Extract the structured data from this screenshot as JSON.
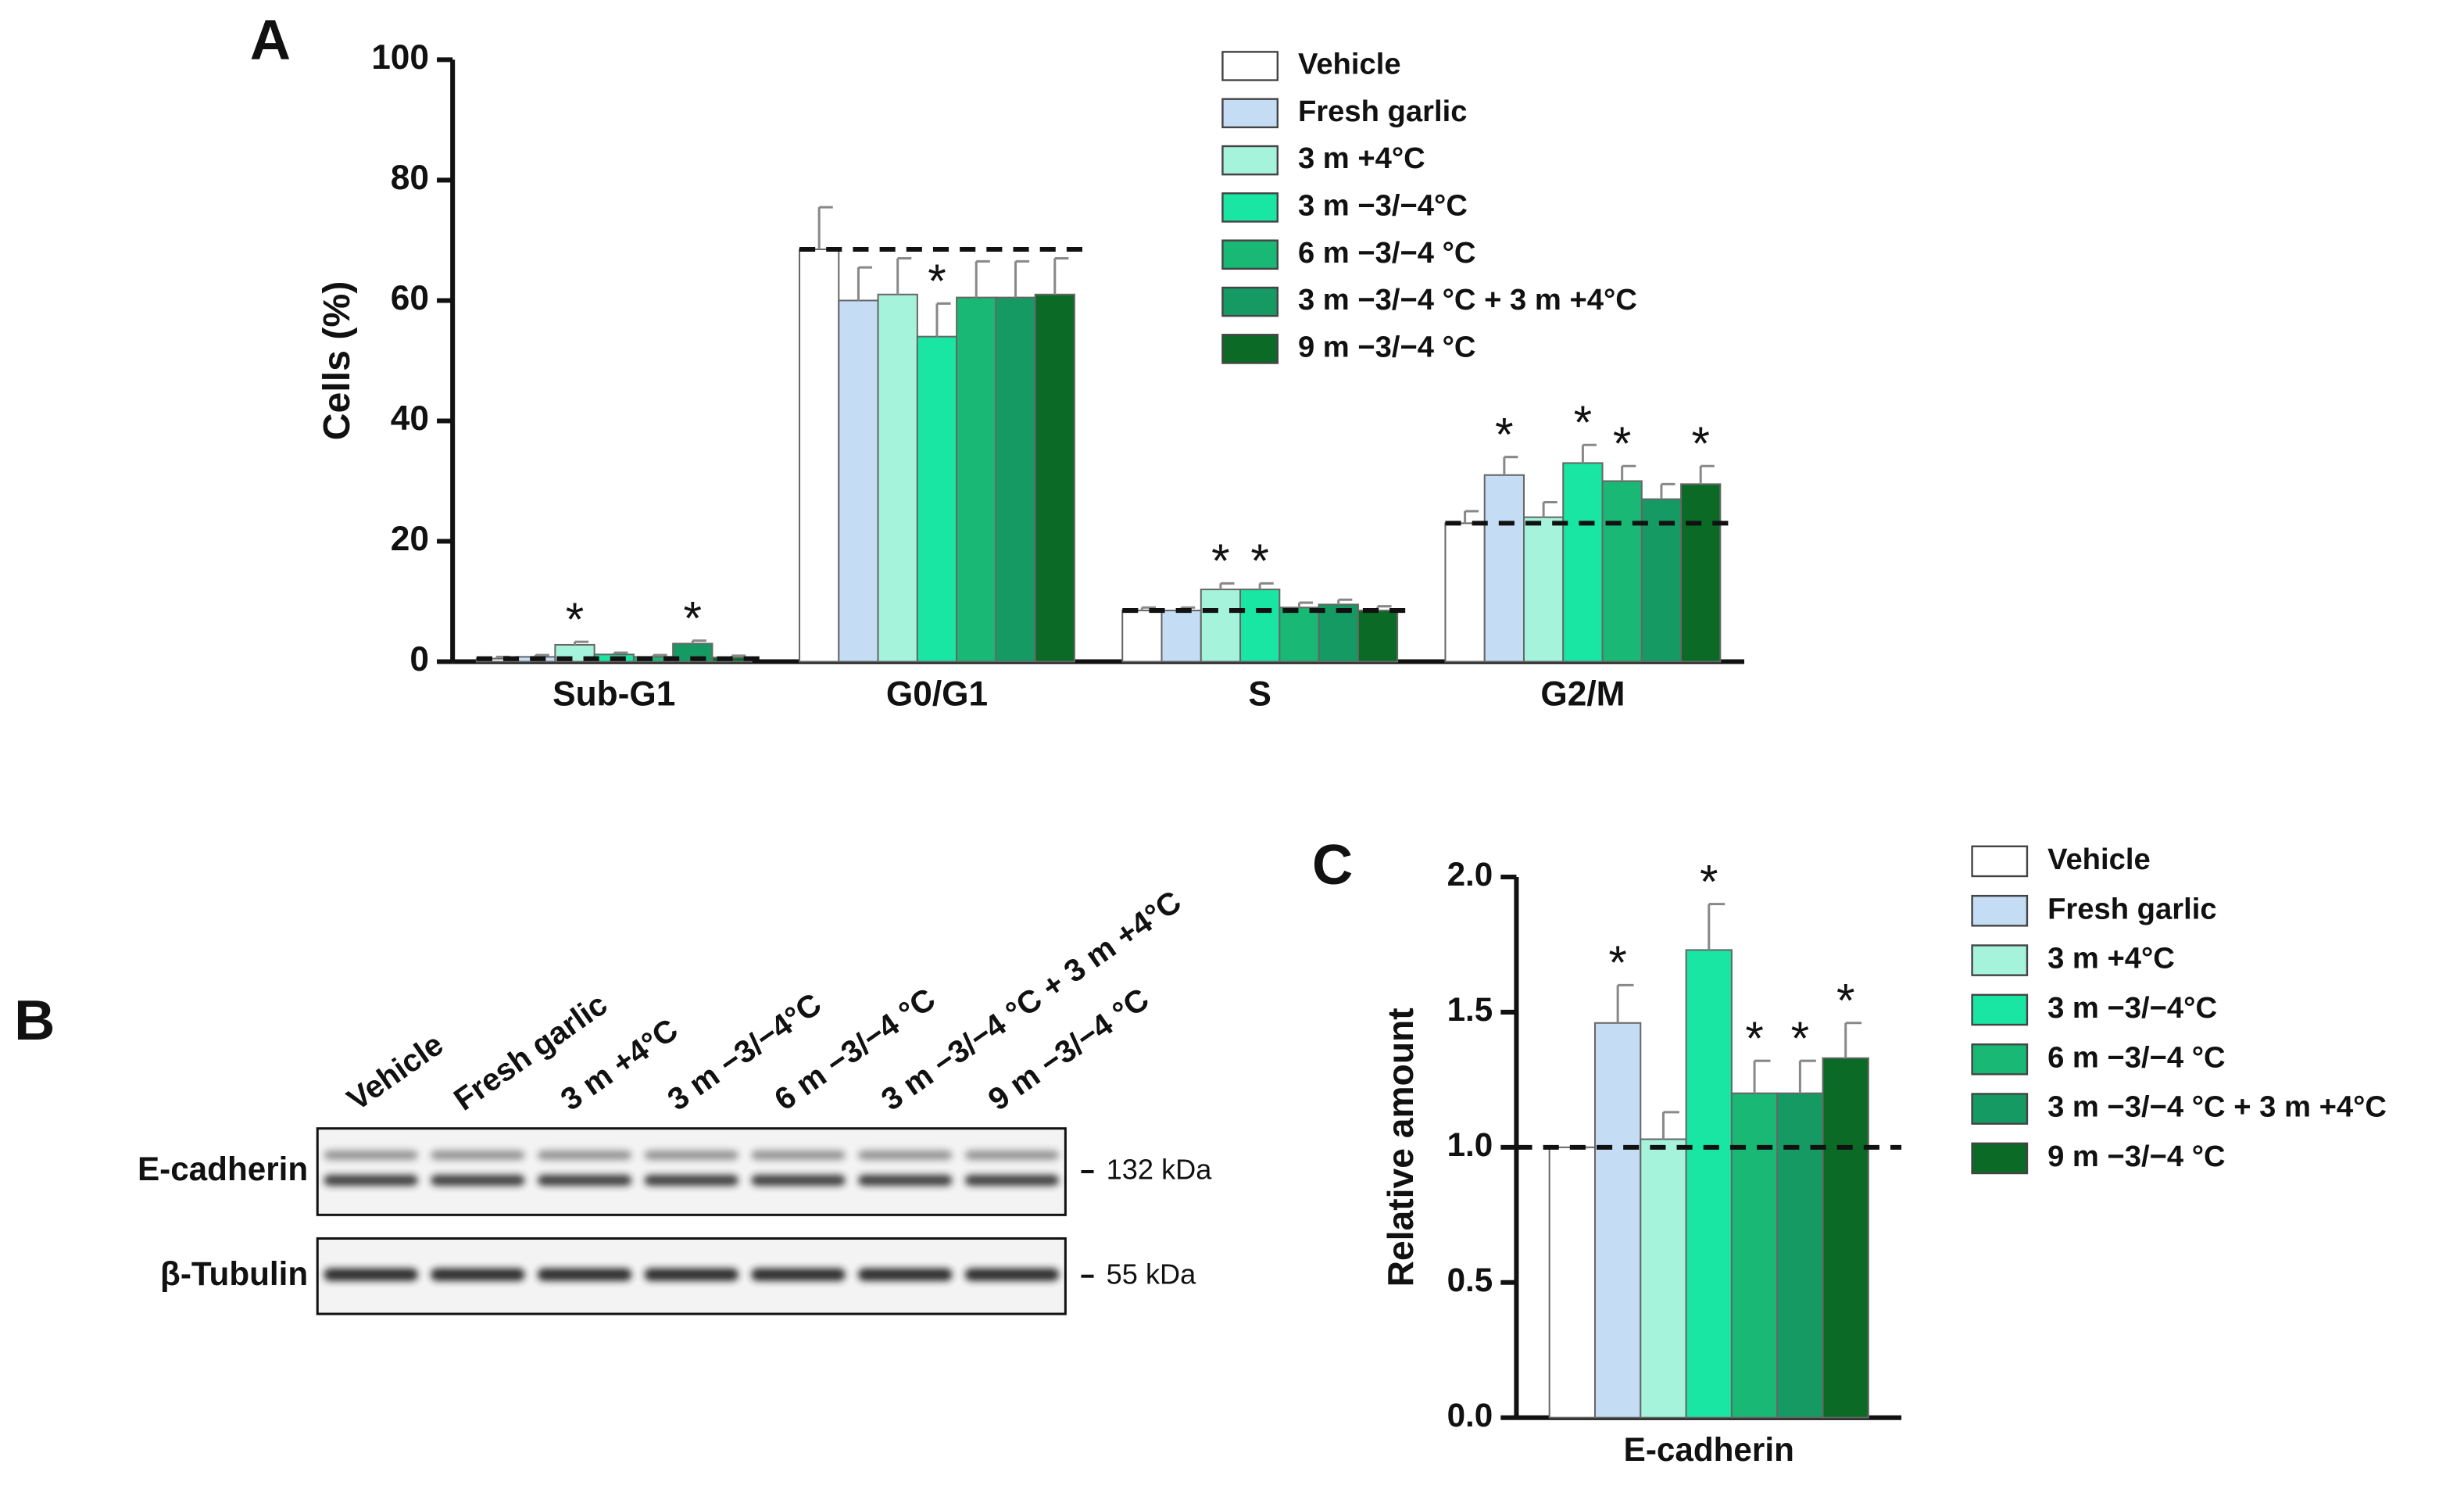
{
  "chart_data": [
    {
      "type": "bar",
      "panel": "A",
      "ylabel": "Cells (%)",
      "categories": [
        "Sub-G1",
        "G0/G1",
        "S",
        "G2/M"
      ],
      "ylim": [
        0,
        100
      ],
      "yticks": [
        0,
        20,
        40,
        60,
        80,
        100
      ],
      "significance_marker": "*",
      "reference_line": "vehicle",
      "series": [
        {
          "name": "Vehicle",
          "color": "#ffffff",
          "values": [
            0.5,
            68.5,
            8.5,
            23
          ],
          "errors": [
            0.3,
            7,
            0.5,
            2
          ],
          "significant": [
            false,
            false,
            false,
            false
          ]
        },
        {
          "name": "Fresh garlic",
          "color": "#c5dcf5",
          "values": [
            0.8,
            60,
            8.5,
            31
          ],
          "errors": [
            0.3,
            5.5,
            0.5,
            3
          ],
          "significant": [
            false,
            false,
            false,
            true
          ]
        },
        {
          "name": "3 m +4°C",
          "color": "#a6f3dc",
          "values": [
            2.8,
            61,
            12,
            24
          ],
          "errors": [
            0.5,
            6,
            1,
            2.5
          ],
          "significant": [
            true,
            false,
            true,
            false
          ]
        },
        {
          "name": "3 m −3/−4°C",
          "color": "#19e6a2",
          "values": [
            1.2,
            54,
            12,
            33
          ],
          "errors": [
            0.3,
            5.5,
            1,
            3
          ],
          "significant": [
            false,
            true,
            true,
            true
          ]
        },
        {
          "name": "6 m −3/−4 °C",
          "color": "#19b874",
          "values": [
            0.8,
            60.5,
            9,
            30
          ],
          "errors": [
            0.3,
            6,
            0.8,
            2.5
          ],
          "significant": [
            false,
            false,
            false,
            true
          ]
        },
        {
          "name": "3 m −3/−4 °C + 3 m +4°C",
          "color": "#149a62",
          "values": [
            3.0,
            60.5,
            9.5,
            27
          ],
          "errors": [
            0.5,
            6,
            0.8,
            2.5
          ],
          "significant": [
            true,
            false,
            false,
            false
          ]
        },
        {
          "name": "9 m −3/−4 °C",
          "color": "#0b6a26",
          "values": [
            0.7,
            61,
            8.5,
            29.5
          ],
          "errors": [
            0.3,
            6,
            0.7,
            3
          ],
          "significant": [
            false,
            false,
            false,
            true
          ]
        }
      ]
    },
    {
      "type": "bar",
      "panel": "C",
      "ylabel": "Relative amount",
      "categories": [
        "E-cadherin"
      ],
      "ylim": [
        0,
        2
      ],
      "yticks": [
        {
          "value": 0,
          "label": "0.0"
        },
        {
          "value": 0.5,
          "label": "0.5"
        },
        {
          "value": 1,
          "label": "1.0"
        },
        {
          "value": 1.5,
          "label": "1.5"
        },
        {
          "value": 2,
          "label": "2.0"
        }
      ],
      "significance_marker": "*",
      "reference_line": "vehicle",
      "series": [
        {
          "name": "Vehicle",
          "color": "#ffffff",
          "values": [
            1.0
          ],
          "errors": [
            0
          ],
          "significant": [
            false
          ]
        },
        {
          "name": "Fresh garlic",
          "color": "#c5dcf5",
          "values": [
            1.46
          ],
          "errors": [
            0.14
          ],
          "significant": [
            true
          ]
        },
        {
          "name": "3 m +4°C",
          "color": "#a6f3dc",
          "values": [
            1.03
          ],
          "errors": [
            0.1
          ],
          "significant": [
            false
          ]
        },
        {
          "name": "3 m −3/−4°C",
          "color": "#19e6a2",
          "values": [
            1.73
          ],
          "errors": [
            0.17
          ],
          "significant": [
            true
          ]
        },
        {
          "name": "6 m −3/−4 °C",
          "color": "#19b874",
          "values": [
            1.2
          ],
          "errors": [
            0.12
          ],
          "significant": [
            true
          ]
        },
        {
          "name": "3 m −3/−4 °C + 3 m +4°C",
          "color": "#149a62",
          "values": [
            1.2
          ],
          "errors": [
            0.12
          ],
          "significant": [
            true
          ]
        },
        {
          "name": "9 m −3/−4 °C",
          "color": "#0b6a26",
          "values": [
            1.33
          ],
          "errors": [
            0.13
          ],
          "significant": [
            true
          ]
        }
      ]
    }
  ],
  "blot": {
    "panel": "B",
    "lanes": [
      "Vehicle",
      "Fresh garlic",
      "3 m +4°C",
      "3 m −3/−4°C",
      "6 m −3/−4 °C",
      "3 m −3/−4 °C + 3 m +4°C",
      "9 m −3/−4 °C"
    ],
    "rows": [
      {
        "label": "E-cadherin",
        "marker": "132 kDa"
      },
      {
        "label": "β-Tubulin",
        "marker": "55 kDa"
      }
    ]
  }
}
